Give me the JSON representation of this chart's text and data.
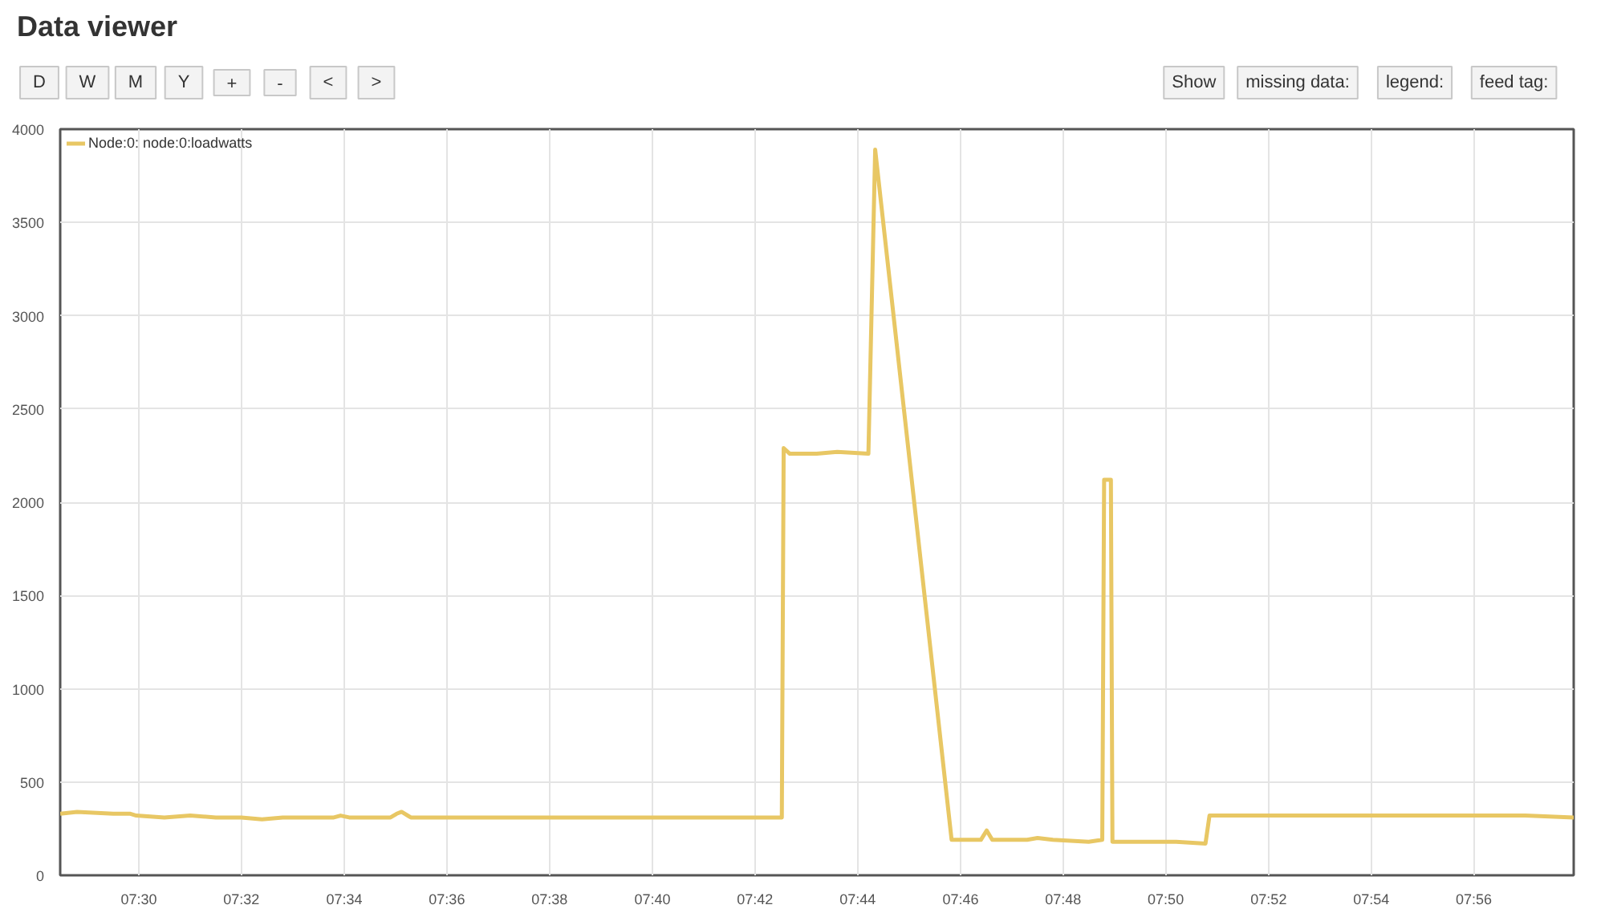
{
  "chart_data": {
    "type": "line",
    "title": "Data viewer",
    "annotations": [
      "D",
      "W",
      "M",
      "Y",
      "+",
      "-",
      "<",
      ">",
      "Show",
      "missing data:",
      "legend:",
      "feed tag:"
    ],
    "x": [
      7.4745,
      7.48,
      7.4917,
      7.4973,
      7.4992,
      7.5083,
      7.5167,
      7.525,
      7.5333,
      7.54,
      7.5467,
      7.555,
      7.5633,
      7.5655,
      7.5683,
      7.575,
      7.5817,
      7.5837,
      7.5853,
      7.5883,
      7.6,
      7.6167,
      7.6333,
      7.65,
      7.6667,
      7.6833,
      7.7,
      7.7087,
      7.7093,
      7.7113,
      7.72,
      7.7267,
      7.7368,
      7.739,
      7.7638,
      7.7733,
      7.7752,
      7.777,
      7.7883,
      7.7917,
      7.7967,
      7.8083,
      7.8127,
      7.8133,
      7.8155,
      7.816,
      7.825,
      7.8367,
      7.8462,
      7.8475,
      7.8583,
      7.875,
      7.8917,
      7.9083,
      7.9217,
      7.9333,
      7.95,
      7.9657
    ],
    "series": [
      {
        "name": "Node:0: node:0:loadwatts",
        "color": "#e8c764",
        "values": [
          330,
          340,
          330,
          330,
          320,
          310,
          320,
          310,
          310,
          300,
          310,
          310,
          310,
          320,
          310,
          310,
          310,
          330,
          340,
          310,
          310,
          310,
          310,
          310,
          310,
          310,
          310,
          310,
          2290,
          2260,
          2260,
          2270,
          2260,
          3890,
          190,
          190,
          240,
          190,
          190,
          200,
          190,
          180,
          190,
          2120,
          2120,
          180,
          180,
          180,
          170,
          320,
          320,
          320,
          320,
          320,
          320,
          320,
          320,
          310
        ]
      }
    ],
    "xlim": [
      7.4745,
      7.9657
    ],
    "xticks": [
      {
        "value": 7.5,
        "label": "07:30"
      },
      {
        "value": 7.5333,
        "label": "07:32"
      },
      {
        "value": 7.5667,
        "label": "07:34"
      },
      {
        "value": 7.6,
        "label": "07:36"
      },
      {
        "value": 7.6333,
        "label": "07:38"
      },
      {
        "value": 7.6667,
        "label": "07:40"
      },
      {
        "value": 7.7,
        "label": "07:42"
      },
      {
        "value": 7.7333,
        "label": "07:44"
      },
      {
        "value": 7.7667,
        "label": "07:46"
      },
      {
        "value": 7.8,
        "label": "07:48"
      },
      {
        "value": 7.8333,
        "label": "07:50"
      },
      {
        "value": 7.8667,
        "label": "07:52"
      },
      {
        "value": 7.9,
        "label": "07:54"
      },
      {
        "value": 7.9333,
        "label": "07:56"
      }
    ],
    "ylim": [
      0,
      4000
    ],
    "yticks": [
      0,
      500,
      1000,
      1500,
      2000,
      2500,
      3000,
      3500,
      4000
    ],
    "grid": true,
    "legend": "top left",
    "line_style": "solid"
  }
}
